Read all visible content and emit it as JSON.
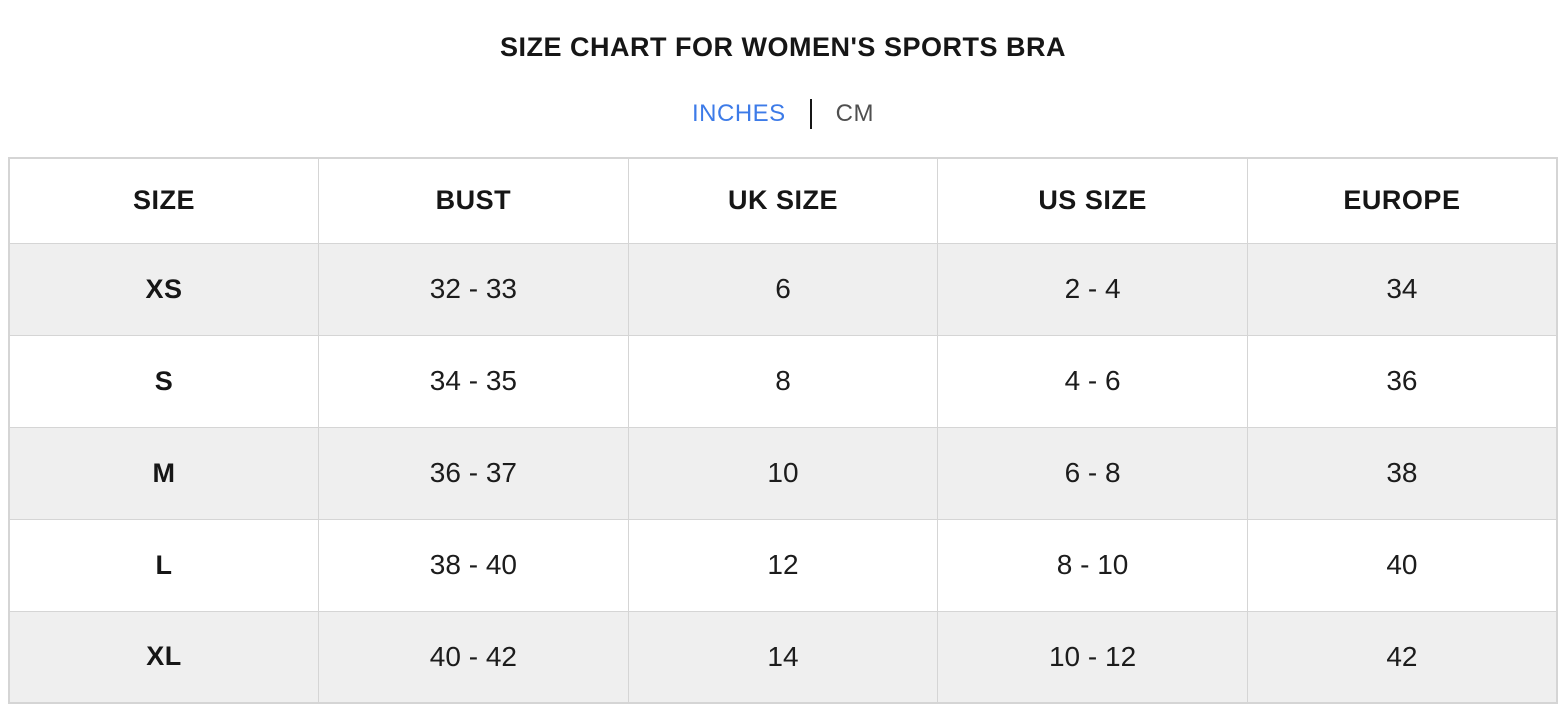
{
  "title": "SIZE CHART FOR WOMEN'S SPORTS BRA",
  "unit_toggle": {
    "active_option": "INCHES",
    "options": [
      {
        "label": "INCHES",
        "active": true
      },
      {
        "label": "CM",
        "active": false
      }
    ],
    "active_color": "#3d7be8",
    "inactive_color": "#4f4f4f"
  },
  "chart_data": {
    "type": "table",
    "title": "SIZE CHART FOR WOMEN'S SPORTS BRA",
    "unit": "INCHES",
    "columns": [
      "SIZE",
      "BUST",
      "UK SIZE",
      "US SIZE",
      "EUROPE"
    ],
    "rows": [
      [
        "XS",
        "32 - 33",
        "6",
        "2 - 4",
        "34"
      ],
      [
        "S",
        "34 - 35",
        "8",
        "4 - 6",
        "36"
      ],
      [
        "M",
        "36 - 37",
        "10",
        "6 - 8",
        "38"
      ],
      [
        "L",
        "38 - 40",
        "12",
        "8 - 10",
        "40"
      ],
      [
        "XL",
        "40 - 42",
        "14",
        "10 - 12",
        "42"
      ]
    ],
    "layout_hints": {
      "striped_rows": [
        0,
        2,
        4
      ],
      "stripe_color": "#efefef",
      "border_color": "#d5d5d5",
      "grid": true
    }
  }
}
